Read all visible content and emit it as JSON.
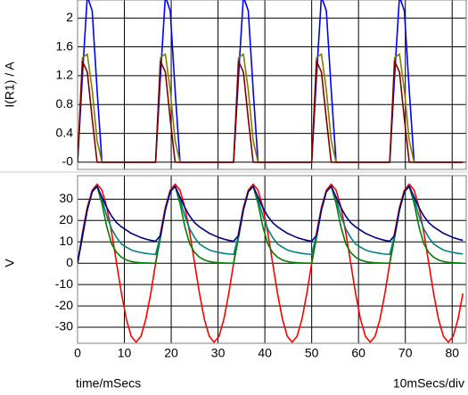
{
  "chart_data": [
    {
      "type": "line",
      "ylabel": "I(R1) / A",
      "ylim": [
        -0.1,
        2.25
      ],
      "yticks": [
        {
          "value": 0,
          "label": "-0"
        },
        0.4,
        0.8,
        1.2,
        1.6,
        2
      ],
      "grid": true,
      "x": [
        0,
        1.04,
        2.08,
        3.13,
        4.17,
        5.21,
        6.25,
        7.29,
        8.33,
        9.38,
        10.42,
        11.46,
        12.5,
        13.54,
        14.58,
        15.63,
        16.67,
        17.71,
        18.75,
        19.79,
        20.83,
        21.88,
        22.92,
        23.96,
        25,
        26.04,
        27.08,
        28.13,
        29.17,
        30.21,
        31.25,
        32.29,
        33.33,
        34.38,
        35.42,
        36.46,
        37.5,
        38.54,
        39.58,
        40.63,
        41.67,
        42.71,
        43.75,
        44.79,
        45.83,
        46.88,
        47.92,
        48.96,
        50,
        51.04,
        52.08,
        53.13,
        54.17,
        55.21,
        56.25,
        57.29,
        58.33,
        59.38,
        60.42,
        61.46,
        62.5,
        63.54,
        64.58,
        65.63,
        66.67,
        67.71,
        68.75,
        69.79,
        70.83,
        71.88,
        72.92,
        73.96,
        75,
        76.04,
        77.08,
        78.13,
        79.17,
        80.21,
        81.25,
        82.29
      ],
      "series": [
        {
          "color": "#0000ff",
          "values": [
            0,
            1.2,
            2.3,
            2.1,
            1,
            0,
            0,
            0,
            0,
            0,
            0,
            0,
            0,
            0,
            0,
            0,
            0,
            1.2,
            2.3,
            2.1,
            1,
            0,
            0,
            0,
            0,
            0,
            0,
            0,
            0,
            0,
            0,
            0,
            0,
            1.2,
            2.3,
            2.1,
            1,
            0,
            0,
            0,
            0,
            0,
            0,
            0,
            0,
            0,
            0,
            0,
            0,
            1.2,
            2.3,
            2.1,
            1,
            0,
            0,
            0,
            0,
            0,
            0,
            0,
            0,
            0,
            0,
            0,
            0,
            1.2,
            2.3,
            2.1,
            1,
            0,
            0,
            0,
            0,
            0,
            0,
            0,
            0,
            0,
            0,
            0
          ]
        },
        {
          "color": "#808000",
          "values": [
            0,
            1.45,
            1.5,
            1,
            0.3,
            0,
            0,
            0,
            0,
            0,
            0,
            0,
            0,
            0,
            0,
            0,
            0,
            1.45,
            1.5,
            1,
            0.3,
            0,
            0,
            0,
            0,
            0,
            0,
            0,
            0,
            0,
            0,
            0,
            0,
            1.45,
            1.5,
            1,
            0.3,
            0,
            0,
            0,
            0,
            0,
            0,
            0,
            0,
            0,
            0,
            0,
            0,
            1.45,
            1.5,
            1,
            0.3,
            0,
            0,
            0,
            0,
            0,
            0,
            0,
            0,
            0,
            0,
            0,
            0,
            1.45,
            1.5,
            1,
            0.3,
            0,
            0,
            0,
            0,
            0,
            0,
            0,
            0,
            0,
            0,
            0
          ]
        },
        {
          "color": "#800000",
          "values": [
            0,
            1.4,
            1.25,
            0.6,
            0,
            0,
            0,
            0,
            0,
            0,
            0,
            0,
            0,
            0,
            0,
            0,
            0,
            1.4,
            1.25,
            0.6,
            0,
            0,
            0,
            0,
            0,
            0,
            0,
            0,
            0,
            0,
            0,
            0,
            0,
            1.4,
            1.25,
            0.6,
            0,
            0,
            0,
            0,
            0,
            0,
            0,
            0,
            0,
            0,
            0,
            0,
            0,
            1.4,
            1.25,
            0.6,
            0,
            0,
            0,
            0,
            0,
            0,
            0,
            0,
            0,
            0,
            0,
            0,
            0,
            1.4,
            1.25,
            0.6,
            0,
            0,
            0,
            0,
            0,
            0,
            0,
            0,
            0,
            0,
            0,
            0
          ]
        }
      ]
    },
    {
      "type": "line",
      "ylabel": "V",
      "xlabel": "time/mSecs",
      "annotation": "10mSecs/div",
      "xlim": [
        0,
        83
      ],
      "xticks": [
        0,
        10,
        20,
        30,
        40,
        50,
        60,
        70,
        80
      ],
      "ylim": [
        -37.5,
        41
      ],
      "yticks": [
        -30,
        -20,
        -10,
        0,
        10,
        20,
        30
      ],
      "grid": true,
      "x": [
        0,
        1.04,
        2.08,
        3.13,
        4.17,
        5.21,
        6.25,
        7.29,
        8.33,
        9.38,
        10.42,
        11.46,
        12.5,
        13.54,
        14.58,
        15.63,
        16.67,
        17.71,
        18.75,
        19.79,
        20.83,
        21.88,
        22.92,
        23.96,
        25,
        26.04,
        27.08,
        28.13,
        29.17,
        30.21,
        31.25,
        32.29,
        33.33,
        34.38,
        35.42,
        36.46,
        37.5,
        38.54,
        39.58,
        40.63,
        41.67,
        42.71,
        43.75,
        44.79,
        45.83,
        46.88,
        47.92,
        48.96,
        50,
        51.04,
        52.08,
        53.13,
        54.17,
        55.21,
        56.25,
        57.29,
        58.33,
        59.38,
        60.42,
        61.46,
        62.5,
        63.54,
        64.58,
        65.63,
        66.67,
        67.71,
        68.75,
        69.79,
        70.83,
        71.88,
        72.92,
        73.96,
        75,
        76.04,
        77.08,
        78.13,
        79.17,
        80.21,
        81.25,
        82.29
      ],
      "series": [
        {
          "color": "#ff0000",
          "values": [
            0,
            14.2,
            26.2,
            34.2,
            37,
            34.2,
            26.2,
            14.2,
            0,
            -14.2,
            -26.2,
            -34.2,
            -37,
            -34.2,
            -26.2,
            -14.2,
            0,
            14.2,
            26.2,
            34.2,
            37,
            34.2,
            26.2,
            14.2,
            0,
            -14.2,
            -26.2,
            -34.2,
            -37,
            -34.2,
            -26.2,
            -14.2,
            0,
            14.2,
            26.2,
            34.2,
            37,
            34.2,
            26.2,
            14.2,
            0,
            -14.2,
            -26.2,
            -34.2,
            -37,
            -34.2,
            -26.2,
            -14.2,
            0,
            14.2,
            26.2,
            34.2,
            37,
            34.2,
            26.2,
            14.2,
            0,
            -14.2,
            -26.2,
            -34.2,
            -37,
            -34.2,
            -26.2,
            -14.2,
            0,
            14.2,
            26.2,
            34.2,
            37,
            34.2,
            26.2,
            14.2,
            0,
            -14.2,
            -26.2,
            -34.2,
            -37,
            -34.2,
            -26.2,
            -14.2
          ]
        },
        {
          "color": "#008000",
          "values": [
            0,
            12,
            25,
            33.5,
            36,
            28,
            17,
            9,
            5,
            2.8,
            1.5,
            0.8,
            0.4,
            0.2,
            0.1,
            0,
            0,
            12,
            25,
            33.5,
            36,
            28,
            17,
            9,
            5,
            2.8,
            1.5,
            0.8,
            0.4,
            0.2,
            0.1,
            0,
            0,
            12,
            25,
            33.5,
            36,
            28,
            17,
            9,
            5,
            2.8,
            1.5,
            0.8,
            0.4,
            0.2,
            0.1,
            0,
            0,
            12,
            25,
            33.5,
            36,
            28,
            17,
            9,
            5,
            2.8,
            1.5,
            0.8,
            0.4,
            0.2,
            0.1,
            0,
            0,
            12,
            25,
            33.5,
            36,
            28,
            17,
            9,
            5,
            2.8,
            1.5,
            0.8,
            0.4,
            0.2,
            0.1,
            0
          ]
        },
        {
          "color": "#008080",
          "values": [
            0,
            13,
            25,
            33.5,
            36,
            30,
            22,
            16,
            12,
            9,
            7.5,
            6.2,
            5.5,
            5,
            4.6,
            4.3,
            4.1,
            13,
            25,
            33.5,
            36,
            30,
            22,
            16,
            12,
            9,
            7.5,
            6.2,
            5.5,
            5,
            4.6,
            4.3,
            4.1,
            13,
            25,
            33.5,
            36,
            30,
            22,
            16,
            12,
            9,
            7.5,
            6.2,
            5.5,
            5,
            4.6,
            4.3,
            4.1,
            13,
            25,
            33.5,
            36,
            30,
            22,
            16,
            12,
            9,
            7.5,
            6.2,
            5.5,
            5,
            4.6,
            4.3,
            4.1,
            13,
            25,
            33.5,
            36,
            30,
            22,
            16,
            12,
            9,
            7.5,
            6.2,
            5.5,
            5,
            4.6,
            4.3
          ]
        },
        {
          "color": "#000080",
          "values": [
            0,
            13,
            25,
            33.5,
            36,
            31,
            26,
            22,
            19,
            17,
            15.5,
            14,
            13,
            12,
            11.3,
            10.7,
            10.3,
            13,
            25,
            33.5,
            36,
            31,
            26,
            22,
            19,
            17,
            15.5,
            14,
            13,
            12,
            11.3,
            10.7,
            10.3,
            13,
            25,
            33.5,
            36,
            31,
            26,
            22,
            19,
            17,
            15.5,
            14,
            13,
            12,
            11.3,
            10.7,
            10.3,
            13,
            25,
            33.5,
            36,
            31,
            26,
            22,
            19,
            17,
            15.5,
            14,
            13,
            12,
            11.3,
            10.7,
            10.3,
            13,
            25,
            33.5,
            36,
            31,
            26,
            22,
            19,
            17,
            15.5,
            14,
            13,
            12,
            11.3,
            10.7
          ]
        }
      ]
    }
  ]
}
